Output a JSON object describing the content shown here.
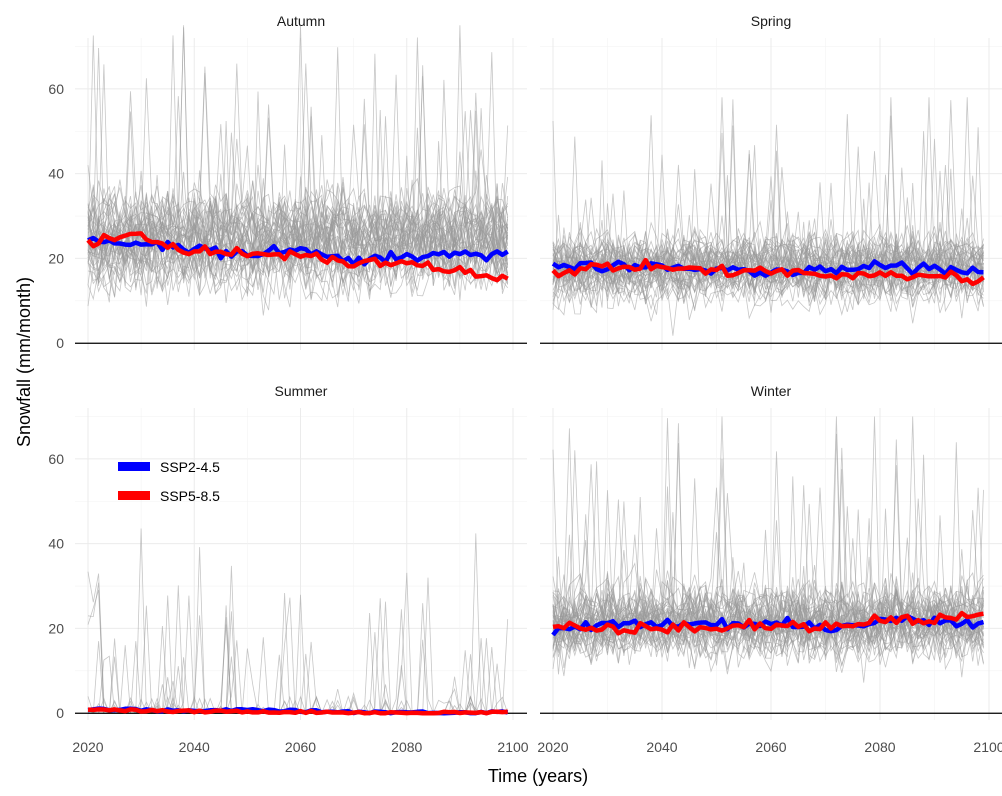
{
  "chart_data": {
    "type": "line",
    "xlabel": "Time (years)",
    "ylabel": "Snowfall (mm/month)",
    "xlim": [
      2020,
      2100
    ],
    "ylim": [
      0,
      70
    ],
    "x_ticks": [
      2020,
      2040,
      2060,
      2080,
      2100
    ],
    "y_ticks": [
      0,
      20,
      40,
      60
    ],
    "grid": true,
    "legend": {
      "placement": "inside-left of Summer panel",
      "entries": [
        {
          "label": "SSP2-4.5",
          "color": "#0000ff"
        },
        {
          "label": "SSP5-8.5",
          "color": "#ff0000"
        }
      ]
    },
    "ensemble_color": "#999999",
    "panels": [
      {
        "title": "Autumn",
        "ensemble_mean": 24,
        "ensemble_spread": 11,
        "ensemble_max": 75,
        "series": [
          {
            "name": "SSP2-4.5",
            "color": "#0000ff",
            "x": [
              2020,
              2030,
              2040,
              2050,
              2060,
              2070,
              2080,
              2090,
              2099
            ],
            "values": [
              24,
              24,
              22,
              21,
              22,
              20,
              20,
              21,
              21
            ]
          },
          {
            "name": "SSP5-8.5",
            "color": "#ff0000",
            "x": [
              2020,
              2030,
              2040,
              2050,
              2060,
              2070,
              2080,
              2090,
              2099
            ],
            "values": [
              24,
              25,
              22,
              21,
              21,
              19,
              19,
              17,
              15
            ]
          }
        ]
      },
      {
        "title": "Spring",
        "ensemble_mean": 17,
        "ensemble_spread": 8,
        "ensemble_max": 58,
        "series": [
          {
            "name": "SSP2-4.5",
            "color": "#0000ff",
            "x": [
              2020,
              2030,
              2040,
              2050,
              2060,
              2070,
              2080,
              2090,
              2099
            ],
            "values": [
              19,
              18,
              18,
              17,
              17,
              17,
              18,
              18,
              17
            ]
          },
          {
            "name": "SSP5-8.5",
            "color": "#ff0000",
            "x": [
              2020,
              2030,
              2040,
              2050,
              2060,
              2070,
              2080,
              2090,
              2099
            ],
            "values": [
              17,
              18,
              18,
              17,
              17,
              16,
              16,
              16,
              15
            ]
          }
        ]
      },
      {
        "title": "Summer",
        "ensemble_mean": 0.5,
        "ensemble_spread": 0,
        "ensemble_max": 50,
        "series": [
          {
            "name": "SSP2-4.5",
            "color": "#0000ff",
            "x": [
              2020,
              2030,
              2040,
              2050,
              2060,
              2070,
              2080,
              2090,
              2099
            ],
            "values": [
              1,
              0.8,
              0.5,
              0.8,
              0.5,
              0.3,
              0.2,
              0.2,
              0.3
            ]
          },
          {
            "name": "SSP5-8.5",
            "color": "#ff0000",
            "x": [
              2020,
              2030,
              2040,
              2050,
              2060,
              2070,
              2080,
              2090,
              2099
            ],
            "values": [
              1,
              0.6,
              0.4,
              0.4,
              0.3,
              0.2,
              0.1,
              0.1,
              0.2
            ]
          }
        ]
      },
      {
        "title": "Winter",
        "ensemble_mean": 21,
        "ensemble_spread": 9,
        "ensemble_max": 70,
        "series": [
          {
            "name": "SSP2-4.5",
            "color": "#0000ff",
            "x": [
              2020,
              2030,
              2040,
              2050,
              2060,
              2070,
              2080,
              2090,
              2099
            ],
            "values": [
              19,
              21,
              21,
              21,
              21,
              20,
              22,
              22,
              21
            ]
          },
          {
            "name": "SSP5-8.5",
            "color": "#ff0000",
            "x": [
              2020,
              2030,
              2040,
              2050,
              2060,
              2070,
              2080,
              2090,
              2099
            ],
            "values": [
              21,
              20,
              20,
              20,
              21,
              20,
              22,
              22,
              23
            ]
          }
        ]
      }
    ]
  }
}
